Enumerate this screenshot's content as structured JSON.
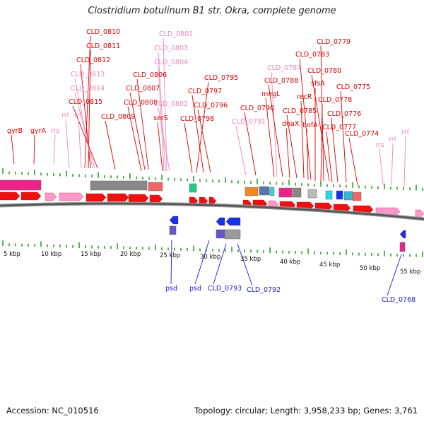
{
  "title": "Clostridium botulinum B1 str. Okra, complete genome",
  "footer": {
    "accession": "Accession: NC_010516",
    "summary": "Topology: circular; Length: 3,958,233 bp; Genes: 3,761"
  },
  "colors": {
    "red_label": "#dd0000",
    "pink_label": "#ee88bb",
    "blue_label": "#1a1acc",
    "feature_red": "#ee1111",
    "feature_pink": "#ff99cc",
    "feature_magenta": "#ee2288",
    "feature_blue": "#1133ee",
    "feature_gray": "#888888",
    "backbone": "#555555",
    "tick_green": "#229922"
  },
  "scale": {
    "unit": "kbp",
    "ticks": [
      "5 kbp",
      "10 kbp",
      "15 kbp",
      "20 kbp",
      "25 kbp",
      "30 kbp",
      "35 kbp",
      "40 kbp",
      "45 kbp",
      "50 kbp",
      "55 kbp"
    ]
  },
  "top_labels": [
    {
      "text": "CLD_0810",
      "color": "red"
    },
    {
      "text": "CLD_0811",
      "color": "red"
    },
    {
      "text": "CLD_0812",
      "color": "red"
    },
    {
      "text": "CLD_0813",
      "color": "pink"
    },
    {
      "text": "CLD_0814",
      "color": "pink"
    },
    {
      "text": "CLD_0815",
      "color": "red"
    },
    {
      "text": "rrl",
      "color": "pink"
    },
    {
      "text": "rrf",
      "color": "pink"
    },
    {
      "text": "gyrB",
      "color": "red"
    },
    {
      "text": "gyrA",
      "color": "red"
    },
    {
      "text": "rrs",
      "color": "pink"
    },
    {
      "text": "CLD_0809",
      "color": "red"
    },
    {
      "text": "CLD_0806",
      "color": "red"
    },
    {
      "text": "CLD_0807",
      "color": "red"
    },
    {
      "text": "CLD_0808",
      "color": "red"
    },
    {
      "text": "CLD_0801",
      "color": "pink"
    },
    {
      "text": "CLD_0803",
      "color": "pink"
    },
    {
      "text": "CLD_0804",
      "color": "pink"
    },
    {
      "text": "CLD_0802",
      "color": "pink"
    },
    {
      "text": "serS",
      "color": "red"
    },
    {
      "text": "CLD_0795",
      "color": "red"
    },
    {
      "text": "CLD_0797",
      "color": "red"
    },
    {
      "text": "CLD_0796",
      "color": "red"
    },
    {
      "text": "CLD_0798",
      "color": "red"
    },
    {
      "text": "CLD_0790",
      "color": "red"
    },
    {
      "text": "CLD_0791",
      "color": "pink"
    },
    {
      "text": "CLD_0787",
      "color": "pink"
    },
    {
      "text": "CLD_0788",
      "color": "red"
    },
    {
      "text": "megL",
      "color": "red"
    },
    {
      "text": "CLD_0785",
      "color": "red"
    },
    {
      "text": "dnaX",
      "color": "red"
    },
    {
      "text": "recR",
      "color": "red"
    },
    {
      "text": "bofA",
      "color": "red"
    },
    {
      "text": "CLD_0779",
      "color": "red"
    },
    {
      "text": "CLD_0783",
      "color": "red"
    },
    {
      "text": "CLD_0780",
      "color": "red"
    },
    {
      "text": "sfsA",
      "color": "red"
    },
    {
      "text": "CLD_0775",
      "color": "red"
    },
    {
      "text": "CLD_0778",
      "color": "red"
    },
    {
      "text": "CLD_0776",
      "color": "red"
    },
    {
      "text": "CLD_0777",
      "color": "red"
    },
    {
      "text": "CLD_0774",
      "color": "red"
    },
    {
      "text": "rrs",
      "color": "pink"
    },
    {
      "text": "rrl",
      "color": "pink"
    },
    {
      "text": "rrf",
      "color": "pink"
    }
  ],
  "bottom_labels": [
    {
      "text": "psd",
      "color": "blue"
    },
    {
      "text": "psd",
      "color": "blue"
    },
    {
      "text": "CLD_0793",
      "color": "blue"
    },
    {
      "text": "CLD_0792",
      "color": "blue"
    },
    {
      "text": "CLD_0768",
      "color": "blue"
    }
  ]
}
